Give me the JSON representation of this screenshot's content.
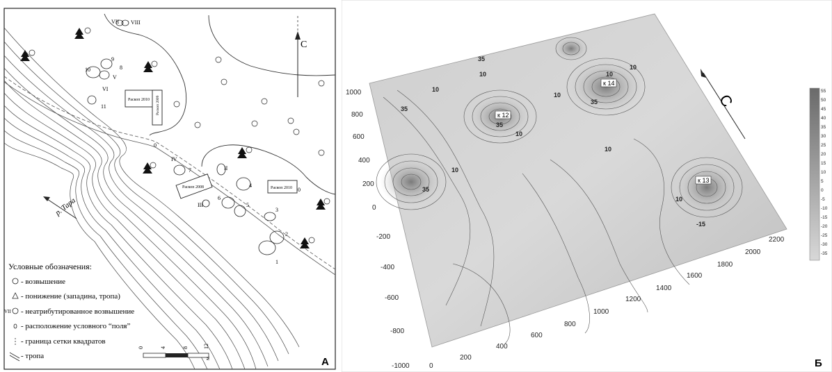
{
  "panel_a": {
    "letter": "А",
    "north": "С",
    "river": "р. Тара",
    "excavations": {
      "e2010a": "Раскоп 2010",
      "e2009": "Раскоп 2009",
      "e2008": "Раскоп 2008",
      "e2010b": "Раскоп 2010"
    },
    "mounds_roman": [
      "I",
      "II",
      "III",
      "IV",
      "V",
      "VI",
      "VII",
      "VIII"
    ],
    "mounds_num": [
      "1",
      "2",
      "3",
      "4",
      "5",
      "6",
      "7",
      "8",
      "9",
      "10",
      "11"
    ],
    "field_marker": "0",
    "legend": {
      "title": "Условные обозначения:",
      "items": [
        "- возвышение",
        "- понижение (западина, тропа)",
        "- неатрибутированное возвышение",
        "- расположение условного “поля”",
        "- граница сетки квадратов",
        "- тропа"
      ],
      "vii_prefix": "VII"
    },
    "scale": {
      "ticks": [
        "0",
        "4",
        "8",
        "12"
      ],
      "unit": "м"
    }
  },
  "panel_b": {
    "letter": "Б",
    "north": "С",
    "labels": {
      "k12": "к 12",
      "k14": "к 14",
      "k13": "к 13"
    },
    "contour_labels": [
      "35",
      "10",
      "10",
      "35",
      "10",
      "10",
      "35",
      "10",
      "10",
      "35",
      "10",
      "10",
      "35",
      "10",
      "-15"
    ],
    "axis_y_ticks": [
      "1000",
      "800",
      "600",
      "400",
      "200",
      "0",
      "-200",
      "-400",
      "-600",
      "-800",
      "-1000"
    ],
    "axis_x_ticks": [
      "0",
      "200",
      "400",
      "600",
      "800",
      "1000",
      "1200",
      "1400",
      "1600",
      "1800",
      "2000",
      "2200"
    ],
    "colorbar_ticks": [
      "55",
      "50",
      "45",
      "40",
      "35",
      "30",
      "25",
      "20",
      "15",
      "10",
      "5",
      "0",
      "-5",
      "-10",
      "-15",
      "-20",
      "-25",
      "-30",
      "-35"
    ]
  }
}
